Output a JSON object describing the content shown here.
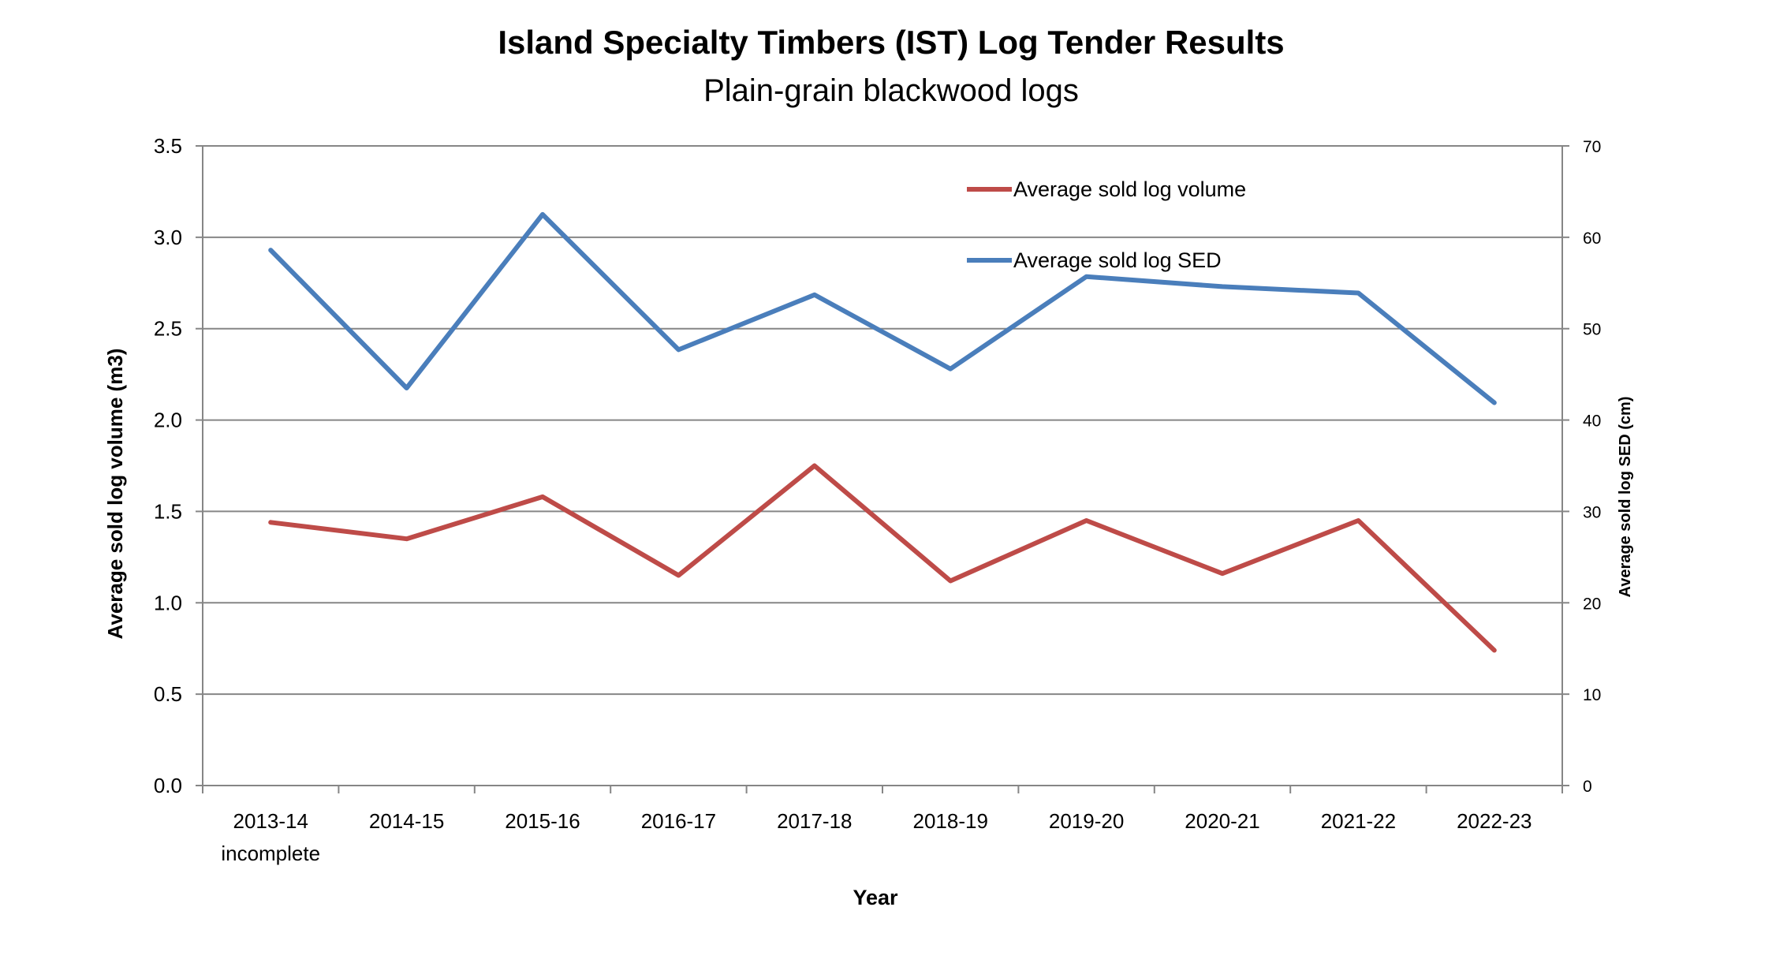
{
  "chart_data": {
    "type": "line",
    "title": "Island Specialty Timbers (IST) Log Tender Results",
    "subtitle": "Plain-grain blackwood logs",
    "xlabel": "Year",
    "ylabel_left": "Average sold log volume (m3)",
    "ylabel_right": "Average sold log SED (cm)",
    "categories": [
      [
        "2013-14",
        "incomplete"
      ],
      [
        "2014-15"
      ],
      [
        "2015-16"
      ],
      [
        "2016-17"
      ],
      [
        "2017-18"
      ],
      [
        "2018-19"
      ],
      [
        "2019-20"
      ],
      [
        "2020-21"
      ],
      [
        "2021-22"
      ],
      [
        "2022-23"
      ]
    ],
    "ylim_left": [
      0,
      3.5
    ],
    "yticks_left": [
      "0.0",
      "0.5",
      "1.0",
      "1.5",
      "2.0",
      "2.5",
      "3.0",
      "3.5"
    ],
    "ylim_right": [
      0,
      70
    ],
    "yticks_right": [
      "0",
      "10",
      "20",
      "30",
      "40",
      "50",
      "60",
      "70"
    ],
    "grid": true,
    "legend_position": "top-right",
    "series": [
      {
        "name": "Average sold log volume",
        "axis": "left",
        "color": "#be4b48",
        "values": [
          1.44,
          1.35,
          1.58,
          1.15,
          1.75,
          1.12,
          1.45,
          1.16,
          1.45,
          0.74
        ]
      },
      {
        "name": "Average sold log SED",
        "axis": "right",
        "color": "#4a7ebb",
        "values": [
          58.6,
          43.5,
          62.5,
          47.7,
          53.7,
          45.6,
          55.7,
          54.6,
          53.9,
          41.9
        ]
      }
    ]
  }
}
